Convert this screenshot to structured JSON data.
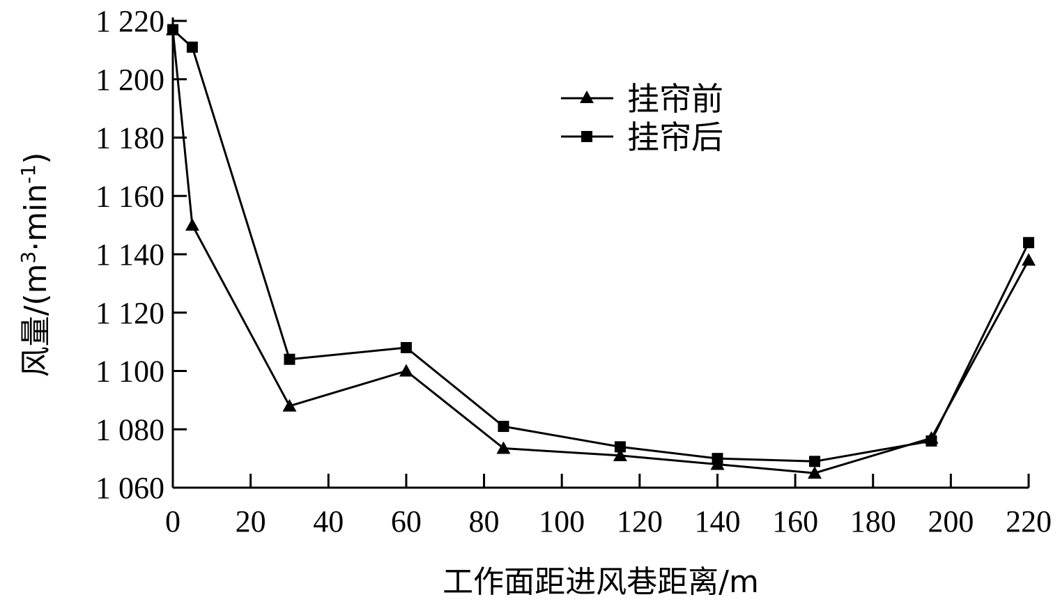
{
  "chart_data": {
    "type": "line",
    "xlabel": "工作面距进风巷距离/m",
    "ylabel_main": "风量/(m",
    "ylabel_sup1": "3",
    "ylabel_mid": "·min",
    "ylabel_sup2": "-1",
    "ylabel_end": ")",
    "xlim": [
      0,
      220
    ],
    "ylim": [
      1060,
      1220
    ],
    "xticks": [
      0,
      20,
      40,
      60,
      80,
      100,
      120,
      140,
      160,
      180,
      200,
      220
    ],
    "xtick_labels": [
      "0",
      "20",
      "40",
      "60",
      "80",
      "100",
      "120",
      "140",
      "160",
      "180",
      "200",
      "220"
    ],
    "yticks": [
      1060,
      1080,
      1100,
      1120,
      1140,
      1160,
      1180,
      1200,
      1220
    ],
    "ytick_labels": [
      "1 060",
      "1 080",
      "1 100",
      "1 120",
      "1 140",
      "1 160",
      "1 180",
      "1 200",
      "1 220"
    ],
    "legend_position": "top-center",
    "series": [
      {
        "name": "挂帘前",
        "marker": "triangle",
        "color": "#000000",
        "x": [
          0,
          5,
          30,
          60,
          85,
          115,
          140,
          165,
          195,
          220
        ],
        "values": [
          1217,
          1150,
          1088,
          1100,
          1073.5,
          1071,
          1068,
          1065,
          1077,
          1138
        ]
      },
      {
        "name": "挂帘后",
        "marker": "square",
        "color": "#000000",
        "x": [
          0,
          5,
          30,
          60,
          85,
          115,
          140,
          165,
          195,
          220
        ],
        "values": [
          1217,
          1211,
          1104,
          1108,
          1081,
          1074,
          1070,
          1069,
          1076,
          1144
        ]
      }
    ]
  }
}
